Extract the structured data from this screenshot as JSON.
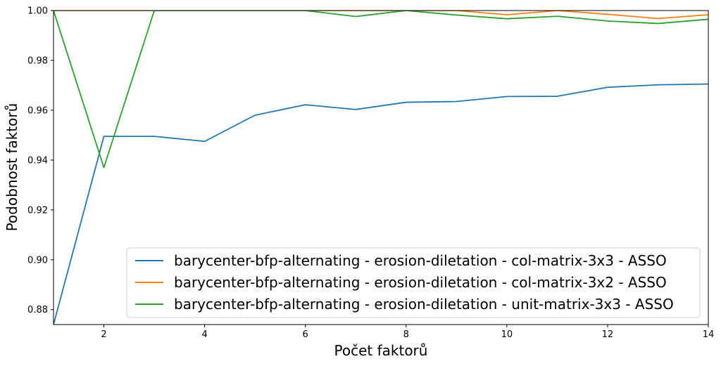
{
  "chart_data": {
    "type": "line",
    "title": "",
    "xlabel": "Počet faktorů",
    "ylabel": "Podobnost faktorů",
    "xlim": [
      1,
      14
    ],
    "ylim": [
      0.874,
      1.0
    ],
    "x_ticks": [
      2,
      4,
      6,
      8,
      10,
      12,
      14
    ],
    "x_tick_labels": [
      "2",
      "4",
      "6",
      "8",
      "10",
      "12",
      "14"
    ],
    "y_ticks": [
      0.88,
      0.9,
      0.92,
      0.94,
      0.96,
      0.98,
      1.0
    ],
    "y_tick_labels": [
      "0.88",
      "0.90",
      "0.92",
      "0.94",
      "0.96",
      "0.98",
      "1.00"
    ],
    "grid": false,
    "legend_position": "lower-right",
    "x": [
      1,
      2,
      3,
      4,
      5,
      6,
      7,
      8,
      9,
      10,
      11,
      12,
      13,
      14
    ],
    "series": [
      {
        "name": "barycenter-bfp-alternating - erosion-diletation - col-matrix-3x3 - ASSO",
        "color": "#1f77b4",
        "values": [
          0.874,
          0.9495,
          0.9495,
          0.9475,
          0.958,
          0.9622,
          0.9603,
          0.9632,
          0.9635,
          0.9655,
          0.9656,
          0.9692,
          0.9702,
          0.9705
        ]
      },
      {
        "name": "barycenter-bfp-alternating - erosion-diletation - col-matrix-3x2 - ASSO",
        "color": "#ff7f0e",
        "values": [
          1.0,
          1.0,
          1.0,
          1.0,
          1.0,
          1.0,
          1.0,
          1.0,
          1.0,
          0.9983,
          1.0,
          0.9985,
          0.9968,
          0.9983
        ]
      },
      {
        "name": "barycenter-bfp-alternating - erosion-diletation - unit-matrix-3x3 - ASSO",
        "color": "#2ca02c",
        "values": [
          1.0,
          0.937,
          1.0,
          1.0,
          1.0,
          1.0,
          0.9976,
          1.0,
          0.9982,
          0.9967,
          0.9977,
          0.9958,
          0.9948,
          0.9965
        ]
      }
    ]
  }
}
